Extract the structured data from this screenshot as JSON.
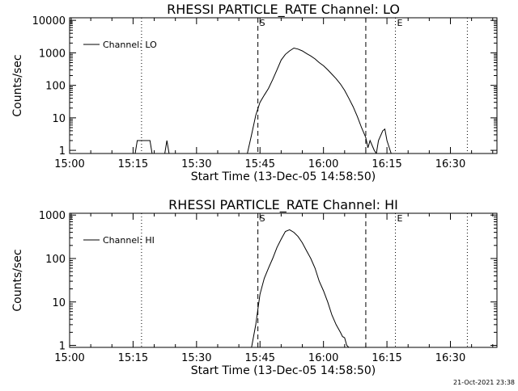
{
  "timestamp": "21-Oct-2021 23:38",
  "chart_data": [
    {
      "type": "line",
      "title": "RHESSI PARTICLE_RATE Channel: LO",
      "xlabel": "Start Time (13-Dec-05 14:58:50)",
      "ylabel": "Counts/sec",
      "yscale": "log",
      "ylim": [
        0.8,
        12000
      ],
      "xlim": [
        "15:00",
        "16:41"
      ],
      "x_ticks": [
        "15:00",
        "15:15",
        "15:30",
        "15:45",
        "16:00",
        "16:15",
        "16:30"
      ],
      "y_ticks": [
        "1",
        "10",
        "100",
        "1000",
        "10000"
      ],
      "legend": {
        "label": "Channel: LO",
        "placement": "top-left"
      },
      "markers": [
        {
          "label": "",
          "time": "15:17",
          "style": "dotted"
        },
        {
          "label": "S",
          "time": "15:44.5",
          "style": "dashed"
        },
        {
          "label": "",
          "time": "16:10",
          "style": "dashed"
        },
        {
          "label": "E",
          "time": "16:17",
          "style": "dotted"
        },
        {
          "label": "",
          "time": "16:34",
          "style": "dotted"
        }
      ],
      "series": [
        {
          "points": [
            [
              "15:00",
              0.8
            ],
            [
              "15:15.5",
              0.8
            ],
            [
              "15:16",
              2
            ],
            [
              "15:19",
              2
            ],
            [
              "15:19.5",
              0.8
            ],
            [
              "15:22.5",
              0.8
            ],
            [
              "15:23",
              2
            ],
            [
              "15:23.5",
              0.8
            ],
            [
              "15:42",
              0.8
            ],
            [
              "15:43",
              3
            ],
            [
              "15:44",
              12
            ],
            [
              "15:45",
              30
            ],
            [
              "15:46",
              50
            ],
            [
              "15:47",
              80
            ],
            [
              "15:48",
              150
            ],
            [
              "15:49",
              300
            ],
            [
              "15:50",
              600
            ],
            [
              "15:51",
              900
            ],
            [
              "15:52",
              1150
            ],
            [
              "15:53",
              1400
            ],
            [
              "15:54",
              1300
            ],
            [
              "15:55",
              1150
            ],
            [
              "15:56",
              950
            ],
            [
              "15:57",
              800
            ],
            [
              "15:58",
              650
            ],
            [
              "15:59",
              500
            ],
            [
              "16:00",
              400
            ],
            [
              "16:01",
              300
            ],
            [
              "16:02",
              220
            ],
            [
              "16:03",
              160
            ],
            [
              "16:04",
              110
            ],
            [
              "16:05",
              70
            ],
            [
              "16:06",
              40
            ],
            [
              "16:07",
              22
            ],
            [
              "16:08",
              11
            ],
            [
              "16:09",
              5
            ],
            [
              "16:10",
              2.5
            ],
            [
              "16:10.5",
              1.2
            ],
            [
              "16:11",
              2
            ],
            [
              "16:12",
              1
            ],
            [
              "16:12.5",
              0.8
            ],
            [
              "16:13",
              2
            ],
            [
              "16:14",
              4
            ],
            [
              "16:14.5",
              4.5
            ],
            [
              "16:15",
              2
            ],
            [
              "16:16",
              0.8
            ]
          ]
        }
      ]
    },
    {
      "type": "line",
      "title": "RHESSI PARTICLE_RATE Channel: HI",
      "xlabel": "Start Time (13-Dec-05 14:58:50)",
      "ylabel": "Counts/sec",
      "yscale": "log",
      "ylim": [
        0.9,
        1100
      ],
      "xlim": [
        "15:00",
        "16:41"
      ],
      "x_ticks": [
        "15:00",
        "15:15",
        "15:30",
        "15:45",
        "16:00",
        "16:15",
        "16:30"
      ],
      "y_ticks": [
        "1",
        "10",
        "100",
        "1000"
      ],
      "legend": {
        "label": "Channel: HI",
        "placement": "top-left"
      },
      "markers": [
        {
          "label": "",
          "time": "15:17",
          "style": "dotted"
        },
        {
          "label": "S",
          "time": "15:44.5",
          "style": "dashed"
        },
        {
          "label": "",
          "time": "16:10",
          "style": "dashed"
        },
        {
          "label": "E",
          "time": "16:17",
          "style": "dotted"
        },
        {
          "label": "",
          "time": "16:34",
          "style": "dotted"
        }
      ],
      "series": [
        {
          "points": [
            [
              "15:43",
              0.9
            ],
            [
              "15:44",
              3
            ],
            [
              "15:45",
              15
            ],
            [
              "15:46",
              35
            ],
            [
              "15:47",
              60
            ],
            [
              "15:48",
              100
            ],
            [
              "15:49",
              180
            ],
            [
              "15:50",
              280
            ],
            [
              "15:51",
              420
            ],
            [
              "15:52",
              460
            ],
            [
              "15:53",
              400
            ],
            [
              "15:54",
              320
            ],
            [
              "15:55",
              230
            ],
            [
              "15:56",
              150
            ],
            [
              "15:57",
              100
            ],
            [
              "15:58",
              60
            ],
            [
              "15:59",
              30
            ],
            [
              "16:00",
              18
            ],
            [
              "16:01",
              10
            ],
            [
              "16:02",
              5
            ],
            [
              "16:03",
              3
            ],
            [
              "16:04",
              2
            ],
            [
              "16:04.5",
              1.6
            ],
            [
              "16:05",
              1.5
            ],
            [
              "16:05.5",
              1
            ],
            [
              "16:06",
              0.9
            ]
          ]
        }
      ]
    }
  ]
}
